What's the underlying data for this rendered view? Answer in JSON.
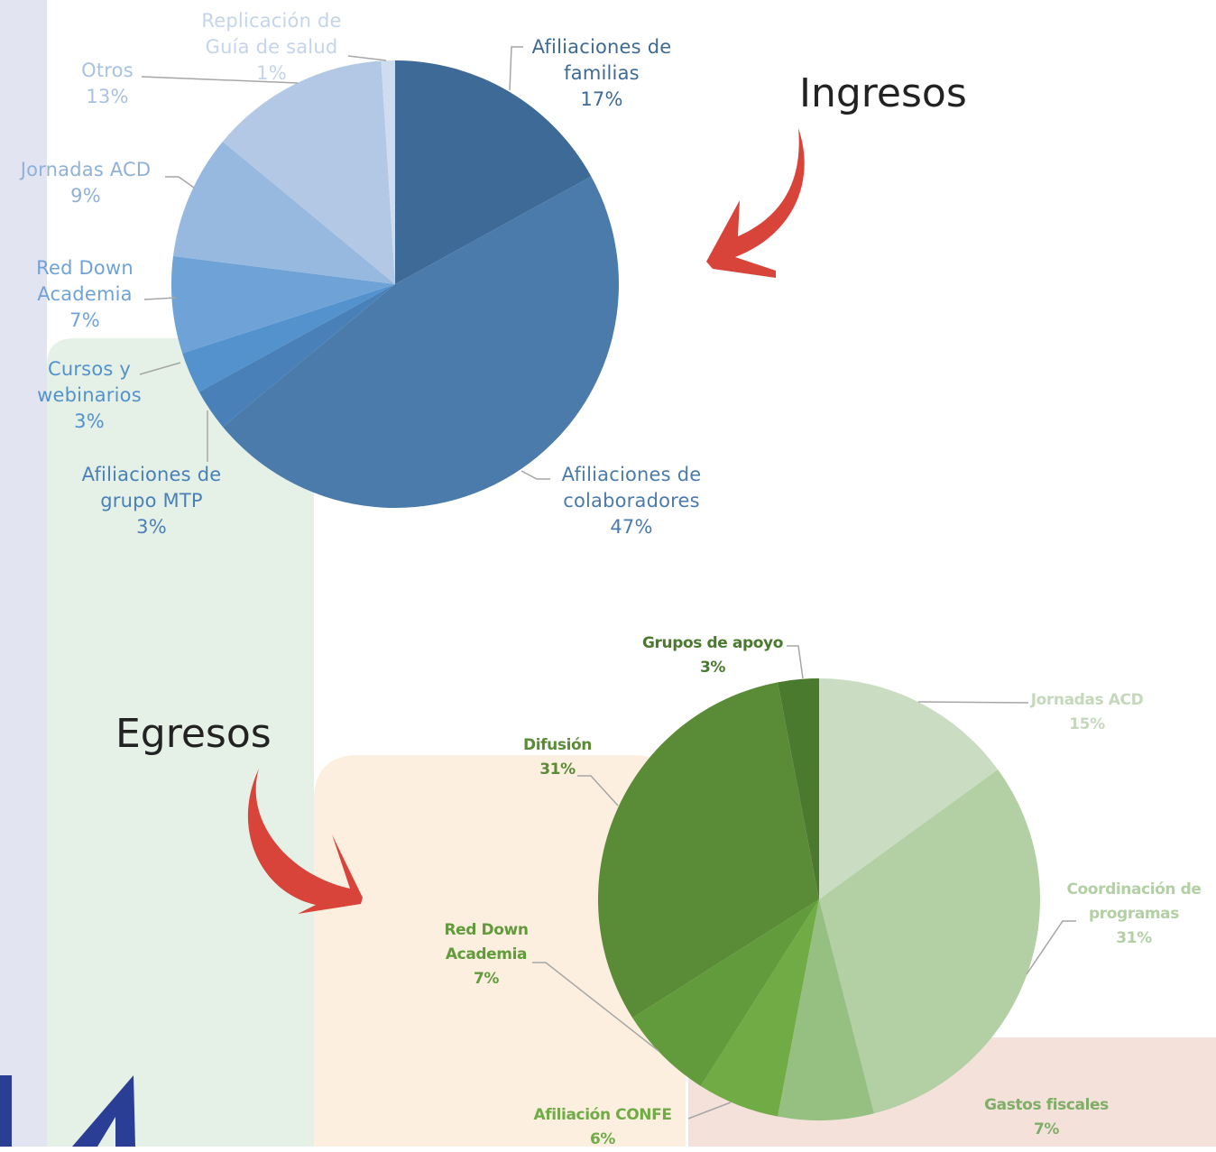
{
  "chart_data": [
    {
      "type": "pie",
      "title": "Ingresos",
      "categories": [
        "Afiliaciones de familias",
        "Afiliaciones de colaboradores",
        "Afiliaciones de grupo MTP",
        "Cursos y webinarios",
        "Red Down Academia",
        "Jornadas ACD",
        "Otros",
        "Replicación de Guía de salud"
      ],
      "values": [
        17,
        47,
        3,
        3,
        7,
        9,
        13,
        1
      ],
      "value_labels": [
        "17%",
        "47%",
        "3%",
        "3%",
        "7%",
        "9%",
        "13%",
        "1%"
      ],
      "colors": [
        "#3d6a96",
        "#4a7bab",
        "#4a80b8",
        "#5392cc",
        "#6fa3d8",
        "#97b9e0",
        "#b2c8e4",
        "#cddcef"
      ]
    },
    {
      "type": "pie",
      "title": "Egresos",
      "categories": [
        "Jornadas ACD",
        "Coordinación de programas",
        "Gastos fiscales",
        "Afiliación CONFE",
        "Red Down Academia",
        "Difusión",
        "Grupos de apoyo"
      ],
      "values": [
        15,
        31,
        7,
        6,
        7,
        31,
        3
      ],
      "value_labels": [
        "15%",
        "31%",
        "7%",
        "6%",
        "7%",
        "31%",
        "3%"
      ],
      "colors": [
        "#cadcc2",
        "#b3cfa4",
        "#96bf82",
        "#70ab46",
        "#629b3c",
        "#5a8c37",
        "#4a7a2d"
      ]
    }
  ]
}
